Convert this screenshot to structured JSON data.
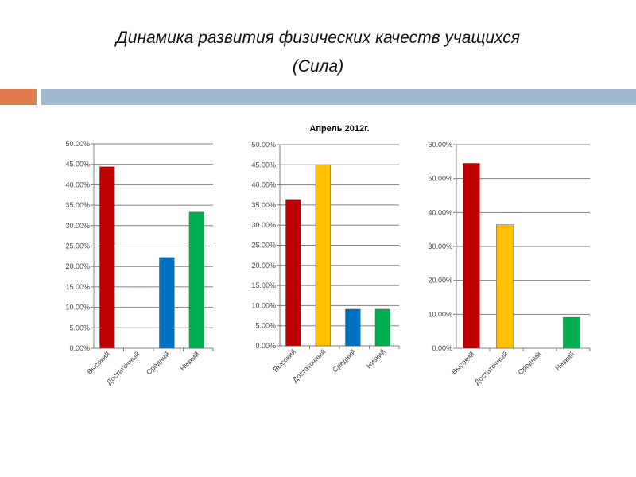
{
  "slide": {
    "title_line1": "Динамика развития физических качеств учащихся",
    "title_line2": "(Сила)"
  },
  "chart_data": [
    {
      "type": "bar",
      "title": "",
      "categories": [
        "Высокий",
        "Достаточный",
        "Средний",
        "Низкий"
      ],
      "values": [
        44.4,
        0,
        22.2,
        33.3
      ],
      "ylim": [
        0,
        50
      ],
      "yticks": [
        "0.00%",
        "5.00%",
        "10.00%",
        "15.00%",
        "20.00%",
        "25.00%",
        "30.00%",
        "35.00%",
        "40.00%",
        "45.00%",
        "50.00%"
      ],
      "colors": [
        "#c00000",
        "#ffc000",
        "#0070c0",
        "#00b050"
      ],
      "grid": true
    },
    {
      "type": "bar",
      "title": "Апрель 2012г.",
      "categories": [
        "Высокий",
        "Достаточный",
        "Средний",
        "Низкий"
      ],
      "values": [
        36.4,
        45.0,
        9.1,
        9.1
      ],
      "ylim": [
        0,
        50
      ],
      "yticks": [
        "0.00%",
        "5.00%",
        "10.00%",
        "15.00%",
        "20.00%",
        "25.00%",
        "30.00%",
        "35.00%",
        "40.00%",
        "45.00%",
        "50.00%"
      ],
      "colors": [
        "#c00000",
        "#ffc000",
        "#0070c0",
        "#00b050"
      ],
      "grid": true
    },
    {
      "type": "bar",
      "title": "",
      "categories": [
        "Высокий",
        "Достаточный",
        "Средний",
        "Низкий"
      ],
      "values": [
        54.5,
        36.4,
        0,
        9.1
      ],
      "ylim": [
        0,
        60
      ],
      "yticks": [
        "0.00%",
        "10.00%",
        "20.00%",
        "30.00%",
        "40.00%",
        "50.00%",
        "60.00%"
      ],
      "colors": [
        "#c00000",
        "#ffc000",
        "#0070c0",
        "#00b050"
      ],
      "grid": true
    }
  ]
}
